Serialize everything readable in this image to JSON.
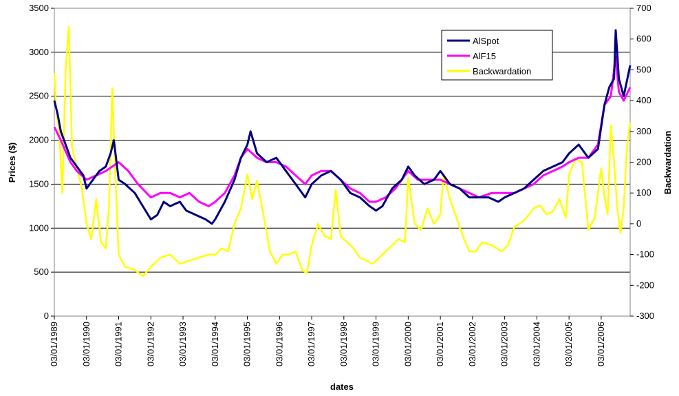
{
  "chart_data": {
    "type": "line",
    "xlabel": "dates",
    "ylabel_left": "Prices ($)",
    "ylabel_right": "Backwardation",
    "ylim_left": [
      0,
      3500
    ],
    "ylim_right": [
      -300,
      700
    ],
    "yticks_left": [
      "0",
      "500",
      "1000",
      "1500",
      "2000",
      "2500",
      "3000",
      "3500"
    ],
    "yticks_right": [
      "-300",
      "-200",
      "-100",
      "0",
      "100",
      "200",
      "300",
      "400",
      "500",
      "600",
      "700"
    ],
    "x_ticks": [
      "03/01/1989",
      "03/01/1990",
      "03/01/1991",
      "03/01/1992",
      "03/01/1993",
      "03/01/1994",
      "03/01/1995",
      "03/01/1996",
      "03/01/1997",
      "03/01/1998",
      "03/01/1999",
      "03/01/2000",
      "03/01/2001",
      "03/01/2002",
      "03/01/2003",
      "03/01/2004",
      "03/01/2005",
      "03/01/2006"
    ],
    "x_range": [
      1989.0,
      2006.9
    ],
    "grid": "horizontal",
    "legend_position": "top-right",
    "series": [
      {
        "name": "AlSpot",
        "color": "#000080",
        "axis": "left",
        "x": [
          1989.0,
          1989.1,
          1989.2,
          1989.35,
          1989.5,
          1989.7,
          1989.9,
          1990.0,
          1990.2,
          1990.4,
          1990.6,
          1990.75,
          1990.85,
          1991.0,
          1991.2,
          1991.5,
          1991.75,
          1992.0,
          1992.2,
          1992.4,
          1992.6,
          1992.9,
          1993.1,
          1993.4,
          1993.7,
          1993.9,
          1994.0,
          1994.3,
          1994.6,
          1994.8,
          1995.0,
          1995.1,
          1995.3,
          1995.6,
          1995.9,
          1996.2,
          1996.5,
          1996.8,
          1997.0,
          1997.3,
          1997.6,
          1997.9,
          1998.2,
          1998.5,
          1998.8,
          1999.0,
          1999.2,
          1999.5,
          1999.8,
          2000.0,
          2000.2,
          2000.5,
          2000.8,
          2001.0,
          2001.3,
          2001.6,
          2001.9,
          2002.2,
          2002.5,
          2002.8,
          2003.0,
          2003.3,
          2003.6,
          2003.9,
          2004.2,
          2004.5,
          2004.8,
          2005.0,
          2005.3,
          2005.6,
          2005.9,
          2006.1,
          2006.25,
          2006.4,
          2006.45,
          2006.55,
          2006.7,
          2006.9
        ],
        "y": [
          2450,
          2300,
          2100,
          1950,
          1800,
          1700,
          1600,
          1450,
          1550,
          1650,
          1700,
          1850,
          2000,
          1550,
          1500,
          1400,
          1250,
          1100,
          1150,
          1300,
          1250,
          1300,
          1200,
          1150,
          1100,
          1050,
          1100,
          1300,
          1550,
          1800,
          1950,
          2100,
          1850,
          1750,
          1800,
          1650,
          1500,
          1350,
          1500,
          1600,
          1650,
          1550,
          1400,
          1350,
          1250,
          1200,
          1250,
          1450,
          1550,
          1700,
          1600,
          1500,
          1550,
          1650,
          1500,
          1450,
          1350,
          1350,
          1350,
          1300,
          1350,
          1400,
          1450,
          1550,
          1650,
          1700,
          1750,
          1850,
          1950,
          1800,
          1900,
          2400,
          2600,
          2700,
          3250,
          2700,
          2500,
          2850
        ]
      },
      {
        "name": "AlF15",
        "color": "#ff00ff",
        "axis": "left",
        "x": [
          1989.0,
          1989.2,
          1989.5,
          1989.7,
          1990.0,
          1990.3,
          1990.6,
          1990.8,
          1991.0,
          1991.3,
          1991.6,
          1992.0,
          1992.3,
          1992.6,
          1992.9,
          1993.2,
          1993.5,
          1993.8,
          1994.0,
          1994.3,
          1994.6,
          1994.8,
          1995.0,
          1995.3,
          1995.6,
          1995.9,
          1996.2,
          1996.5,
          1996.8,
          1997.0,
          1997.3,
          1997.6,
          1997.9,
          1998.2,
          1998.5,
          1998.8,
          1999.0,
          1999.3,
          1999.6,
          2000.0,
          2000.3,
          2000.6,
          2001.0,
          2001.3,
          2001.6,
          2001.9,
          2002.2,
          2002.6,
          2003.0,
          2003.3,
          2003.6,
          2003.9,
          2004.2,
          2004.5,
          2004.8,
          2005.0,
          2005.3,
          2005.6,
          2005.9,
          2006.1,
          2006.3,
          2006.45,
          2006.55,
          2006.7,
          2006.9
        ],
        "y": [
          2150,
          2000,
          1750,
          1650,
          1550,
          1600,
          1650,
          1700,
          1750,
          1650,
          1500,
          1350,
          1400,
          1400,
          1350,
          1400,
          1300,
          1250,
          1300,
          1400,
          1600,
          1800,
          1900,
          1800,
          1750,
          1750,
          1700,
          1600,
          1500,
          1600,
          1650,
          1650,
          1550,
          1450,
          1400,
          1300,
          1300,
          1350,
          1450,
          1650,
          1550,
          1550,
          1550,
          1500,
          1450,
          1400,
          1350,
          1400,
          1400,
          1400,
          1450,
          1500,
          1600,
          1650,
          1700,
          1750,
          1800,
          1800,
          1950,
          2400,
          2500,
          2950,
          2550,
          2450,
          2600
        ]
      },
      {
        "name": "Backwardation",
        "color": "#ffff00",
        "axis": "right",
        "x": [
          1989.0,
          1989.05,
          1989.15,
          1989.25,
          1989.35,
          1989.45,
          1989.55,
          1989.7,
          1989.85,
          1990.0,
          1990.15,
          1990.3,
          1990.45,
          1990.6,
          1990.7,
          1990.8,
          1990.9,
          1991.0,
          1991.2,
          1991.5,
          1991.75,
          1992.0,
          1992.3,
          1992.6,
          1992.9,
          1993.2,
          1993.5,
          1993.8,
          1994.0,
          1994.2,
          1994.4,
          1994.6,
          1994.8,
          1995.0,
          1995.15,
          1995.3,
          1995.5,
          1995.7,
          1995.9,
          1996.1,
          1996.3,
          1996.5,
          1996.7,
          1996.85,
          1997.0,
          1997.2,
          1997.4,
          1997.6,
          1997.75,
          1997.9,
          1998.1,
          1998.3,
          1998.5,
          1998.7,
          1998.9,
          1999.1,
          1999.3,
          1999.5,
          1999.7,
          1999.9,
          2000.0,
          2000.2,
          2000.4,
          2000.6,
          2000.8,
          2001.0,
          2001.1,
          2001.3,
          2001.5,
          2001.7,
          2001.9,
          2002.1,
          2002.3,
          2002.6,
          2002.9,
          2003.1,
          2003.3,
          2003.6,
          2003.9,
          2004.1,
          2004.3,
          2004.5,
          2004.7,
          2004.9,
          2005.0,
          2005.2,
          2005.4,
          2005.6,
          2005.8,
          2006.0,
          2006.1,
          2006.2,
          2006.3,
          2006.4,
          2006.5,
          2006.6,
          2006.7,
          2006.8,
          2006.9
        ],
        "y": [
          490,
          380,
          300,
          100,
          500,
          640,
          250,
          180,
          120,
          0,
          -50,
          80,
          -60,
          -80,
          60,
          440,
          150,
          -100,
          -140,
          -150,
          -170,
          -140,
          -110,
          -100,
          -130,
          -120,
          -110,
          -100,
          -100,
          -80,
          -90,
          0,
          50,
          160,
          80,
          140,
          30,
          -90,
          -130,
          -100,
          -100,
          -90,
          -150,
          -160,
          -70,
          0,
          -40,
          -50,
          110,
          -40,
          -60,
          -80,
          -110,
          -120,
          -130,
          -110,
          -90,
          -70,
          -50,
          -60,
          150,
          0,
          -20,
          50,
          0,
          30,
          160,
          80,
          20,
          -40,
          -90,
          -90,
          -60,
          -70,
          -90,
          -70,
          -10,
          10,
          50,
          60,
          30,
          40,
          80,
          20,
          160,
          210,
          200,
          -20,
          20,
          180,
          90,
          30,
          320,
          200,
          50,
          -30,
          50,
          250,
          330
        ]
      }
    ]
  }
}
